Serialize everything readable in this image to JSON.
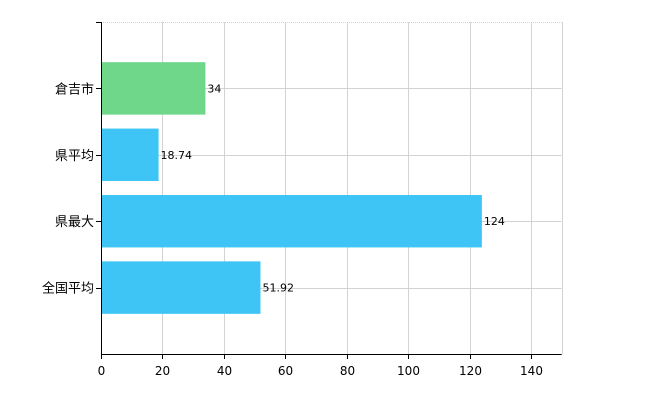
{
  "chart_data": {
    "type": "bar",
    "orientation": "horizontal",
    "title": "",
    "xlabel": "",
    "ylabel": "",
    "categories": [
      "倉吉市",
      "県平均",
      "県最大",
      "全国平均"
    ],
    "values": [
      34,
      18.74,
      124,
      51.92
    ],
    "data_labels": [
      "34",
      "18.74",
      "124",
      "51.92"
    ],
    "bar_colors": [
      "#6fd78a",
      "#3ec4f5",
      "#3ec4f5",
      "#3ec4f5"
    ],
    "xlim": [
      0,
      150
    ],
    "x_ticks": [
      0,
      20,
      40,
      60,
      80,
      100,
      120,
      140
    ],
    "x_tick_labels": [
      "0",
      "20",
      "40",
      "60",
      "80",
      "100",
      "120",
      "140"
    ],
    "grid": true,
    "grid_color": "#d3d3d3",
    "axis_color": "#000000",
    "legend": "none"
  }
}
